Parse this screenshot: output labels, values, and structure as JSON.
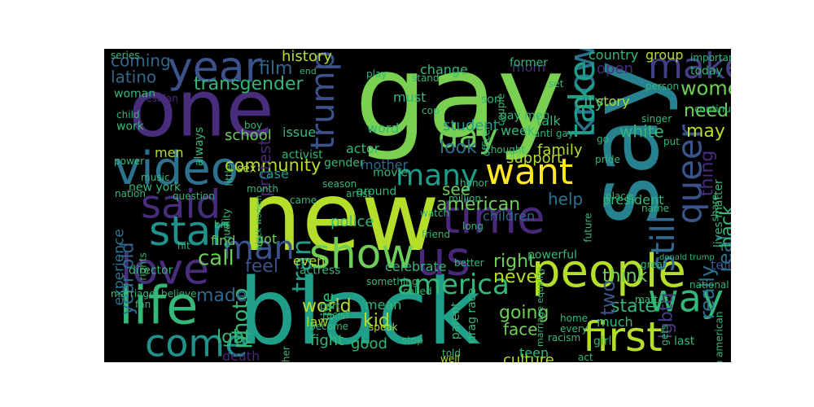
{
  "word_cloud": {
    "background": "#000000",
    "words": [
      {
        "text": "gay",
        "color": "#7ad151"
      },
      {
        "text": "new",
        "color": "#b5de2b"
      },
      {
        "text": "one",
        "color": "#472d7b"
      },
      {
        "text": "black",
        "color": "#1f9e89"
      },
      {
        "text": "say",
        "color": "#26828e"
      },
      {
        "text": "year",
        "color": "#3b528b"
      },
      {
        "text": "people",
        "color": "#b5de2b"
      },
      {
        "text": "time",
        "color": "#482878"
      },
      {
        "text": "want",
        "color": "#fde725"
      },
      {
        "text": "video",
        "color": "#2c728e"
      },
      {
        "text": "said",
        "color": "#472d7b"
      },
      {
        "text": "love",
        "color": "#472d7b"
      },
      {
        "text": "life",
        "color": "#35b779"
      },
      {
        "text": "come",
        "color": "#21918c"
      },
      {
        "text": "star",
        "color": "#21918c"
      },
      {
        "text": "man",
        "color": "#3b528b"
      },
      {
        "text": "show",
        "color": "#6ece58"
      },
      {
        "text": "us",
        "color": "#482878"
      },
      {
        "text": "america",
        "color": "#35b779"
      },
      {
        "text": "first",
        "color": "#b5de2b"
      },
      {
        "text": "way",
        "color": "#35b779"
      },
      {
        "text": "make",
        "color": "#433e85"
      },
      {
        "text": "trump",
        "color": "#3b528b"
      },
      {
        "text": "day",
        "color": "#6ece58"
      },
      {
        "text": "many",
        "color": "#1f9e89"
      },
      {
        "text": "know",
        "color": "#2c728e"
      },
      {
        "text": "take",
        "color": "#1f9e89"
      },
      {
        "text": "queer",
        "color": "#3b528b"
      },
      {
        "text": "still",
        "color": "#31688e"
      },
      {
        "text": "women",
        "color": "#6ece58"
      },
      {
        "text": "need",
        "color": "#6ece58"
      },
      {
        "text": "may",
        "color": "#b5de2b"
      },
      {
        "text": "film",
        "color": "#31688e"
      },
      {
        "text": "coming",
        "color": "#31688e"
      },
      {
        "text": "latino",
        "color": "#31688e"
      },
      {
        "text": "transgender",
        "color": "#35b779"
      },
      {
        "text": "history",
        "color": "#b5de2b"
      },
      {
        "text": "change",
        "color": "#35b779"
      },
      {
        "text": "community",
        "color": "#b5de2b"
      },
      {
        "text": "support",
        "color": "#b5de2b"
      },
      {
        "text": "family",
        "color": "#b5de2b"
      },
      {
        "text": "student",
        "color": "#1f9e89"
      },
      {
        "text": "white",
        "color": "#35b779"
      },
      {
        "text": "look",
        "color": "#2c728e"
      },
      {
        "text": "see",
        "color": "#6ece58"
      },
      {
        "text": "american",
        "color": "#6ece58"
      },
      {
        "text": "help",
        "color": "#2c728e"
      },
      {
        "text": "school",
        "color": "#6ece58"
      },
      {
        "text": "feel",
        "color": "#3b528b"
      },
      {
        "text": "call",
        "color": "#6ece58"
      },
      {
        "text": "tran",
        "color": "#1f9e89"
      },
      {
        "text": "right",
        "color": "#6ece58"
      },
      {
        "text": "never",
        "color": "#b5de2b"
      },
      {
        "text": "world",
        "color": "#b5de2b"
      },
      {
        "text": "photo",
        "color": "#35b779"
      },
      {
        "text": "made",
        "color": "#31688e"
      },
      {
        "text": "think",
        "color": "#6ece58"
      },
      {
        "text": "state",
        "color": "#35b779"
      },
      {
        "text": "two",
        "color": "#3b528b"
      },
      {
        "text": "lgbtq",
        "color": "#433e85"
      },
      {
        "text": "real",
        "color": "#2c728e"
      },
      {
        "text": "really",
        "color": "#2c728e"
      },
      {
        "text": "thing",
        "color": "#472d7b"
      },
      {
        "text": "back",
        "color": "#35b779"
      },
      {
        "text": "lgbt",
        "color": "#35b779"
      },
      {
        "text": "kid",
        "color": "#b5de2b"
      },
      {
        "text": "going",
        "color": "#6ece58"
      },
      {
        "text": "face",
        "color": "#6ece58"
      },
      {
        "text": "fight",
        "color": "#35b779"
      },
      {
        "text": "good",
        "color": "#35b779"
      },
      {
        "text": "live",
        "color": "#35b779"
      },
      {
        "text": "law",
        "color": "#b5de2b"
      },
      {
        "text": "year old",
        "color": "#31688e"
      },
      {
        "text": "experience",
        "color": "#2c728e"
      },
      {
        "text": "protest",
        "color": "#482878"
      },
      {
        "text": "police",
        "color": "#35b779"
      },
      {
        "text": "president",
        "color": "#35b779"
      },
      {
        "text": "celebrate",
        "color": "#35b779"
      },
      {
        "text": "children",
        "color": "#31688e"
      },
      {
        "text": "new york",
        "color": "#35b779"
      },
      {
        "text": "sex",
        "color": "#b5de2b"
      },
      {
        "text": "case",
        "color": "#1f9e89"
      },
      {
        "text": "got",
        "color": "#6ece58"
      },
      {
        "text": "find",
        "color": "#6ece58"
      },
      {
        "text": "tell",
        "color": "#3b528b"
      },
      {
        "text": "country",
        "color": "#35b779"
      },
      {
        "text": "group",
        "color": "#b5de2b"
      },
      {
        "text": "open",
        "color": "#472d7b"
      },
      {
        "text": "today",
        "color": "#35b779"
      },
      {
        "text": "story",
        "color": "#b5de2b"
      },
      {
        "text": "city",
        "color": "#35b779"
      },
      {
        "text": "mom",
        "color": "#472d7b"
      },
      {
        "text": "must",
        "color": "#35b779"
      },
      {
        "text": "word",
        "color": "#35b779"
      },
      {
        "text": "issue",
        "color": "#35b779"
      },
      {
        "text": "week",
        "color": "#35b779"
      },
      {
        "text": "talk",
        "color": "#35b779"
      },
      {
        "text": "actor",
        "color": "#35b779"
      },
      {
        "text": "mother",
        "color": "#31688e"
      },
      {
        "text": "black women",
        "color": "#35b779"
      },
      {
        "text": "death",
        "color": "#482878"
      },
      {
        "text": "hope",
        "color": "#b5de2b"
      },
      {
        "text": "much",
        "color": "#35b779"
      },
      {
        "text": "teen",
        "color": "#35b779"
      },
      {
        "text": "culture",
        "color": "#b5de2b"
      },
      {
        "text": "parent",
        "color": "#35b779"
      },
      {
        "text": "mean",
        "color": "#35b779"
      },
      {
        "text": "men",
        "color": "#b5de2b"
      },
      {
        "text": "nation",
        "color": "#35b779"
      },
      {
        "text": "question",
        "color": "#35b779"
      },
      {
        "text": "activist",
        "color": "#35b779"
      },
      {
        "text": "gender",
        "color": "#35b779"
      },
      {
        "text": "movie",
        "color": "#35b779"
      },
      {
        "text": "season",
        "color": "#35b779"
      },
      {
        "text": "artist",
        "color": "#35b779"
      },
      {
        "text": "came",
        "color": "#35b779"
      },
      {
        "text": "work",
        "color": "#35b779"
      },
      {
        "text": "music",
        "color": "#35b779"
      },
      {
        "text": "power",
        "color": "#35b779"
      },
      {
        "text": "child",
        "color": "#35b779"
      },
      {
        "text": "woman",
        "color": "#35b779"
      },
      {
        "text": "lesbian",
        "color": "#472d7b"
      },
      {
        "text": "end",
        "color": "#35b779"
      },
      {
        "text": "play",
        "color": "#35b779"
      },
      {
        "text": "around",
        "color": "#35b779"
      },
      {
        "text": "son",
        "color": "#35b779"
      },
      {
        "text": "former",
        "color": "#35b779"
      },
      {
        "text": "set",
        "color": "#35b779"
      },
      {
        "text": "person",
        "color": "#35b779"
      },
      {
        "text": "important",
        "color": "#35b779"
      },
      {
        "text": "singer",
        "color": "#35b779"
      },
      {
        "text": "continue",
        "color": "#35b779"
      },
      {
        "text": "lives matter",
        "color": "#35b779"
      },
      {
        "text": "share",
        "color": "#35b779"
      },
      {
        "text": "pride",
        "color": "#35b779"
      },
      {
        "text": "anti gay",
        "color": "#35b779"
      },
      {
        "text": "gay men",
        "color": "#35b779"
      },
      {
        "text": "put",
        "color": "#35b779"
      },
      {
        "text": "place",
        "color": "#35b779"
      },
      {
        "text": "name",
        "color": "#35b779"
      },
      {
        "text": "marriage equality",
        "color": "#35b779"
      },
      {
        "text": "donald trump",
        "color": "#35b779"
      },
      {
        "text": "great",
        "color": "#35b779"
      },
      {
        "text": "national",
        "color": "#35b779"
      },
      {
        "text": "african american",
        "color": "#35b779"
      },
      {
        "text": "last",
        "color": "#35b779"
      },
      {
        "text": "girl",
        "color": "#35b779"
      },
      {
        "text": "act",
        "color": "#35b779"
      },
      {
        "text": "racism",
        "color": "#35b779"
      },
      {
        "text": "every",
        "color": "#35b779"
      },
      {
        "text": "home",
        "color": "#35b779"
      },
      {
        "text": "matter",
        "color": "#35b779"
      },
      {
        "text": "drag race",
        "color": "#35b779"
      },
      {
        "text": "powerful",
        "color": "#35b779"
      },
      {
        "text": "long",
        "color": "#35b779"
      },
      {
        "text": "better",
        "color": "#35b779"
      },
      {
        "text": "friend",
        "color": "#35b779"
      },
      {
        "text": "watch",
        "color": "#35b779"
      },
      {
        "text": "million",
        "color": "#35b779"
      },
      {
        "text": "honor",
        "color": "#35b779"
      },
      {
        "text": "even",
        "color": "#b5de2b"
      },
      {
        "text": "actress",
        "color": "#35b779"
      },
      {
        "text": "director",
        "color": "#35b779"
      },
      {
        "text": "hit",
        "color": "#35b779"
      },
      {
        "text": "big",
        "color": "#35b779"
      },
      {
        "text": "month",
        "color": "#35b779"
      },
      {
        "text": "equality",
        "color": "#35b779"
      },
      {
        "text": "believe",
        "color": "#35b779"
      },
      {
        "text": "marriage",
        "color": "#35b779"
      },
      {
        "text": "fan",
        "color": "#35b779"
      },
      {
        "text": "rights",
        "color": "#35b779"
      },
      {
        "text": "racist",
        "color": "#35b779"
      },
      {
        "text": "become",
        "color": "#35b779"
      },
      {
        "text": "another",
        "color": "#35b779"
      },
      {
        "text": "something",
        "color": "#35b779"
      },
      {
        "text": "called",
        "color": "#35b779"
      },
      {
        "text": "speak",
        "color": "#b5de2b"
      },
      {
        "text": "told",
        "color": "#35b779"
      },
      {
        "text": "well",
        "color": "#b5de2b"
      },
      {
        "text": "stop",
        "color": "#35b779"
      },
      {
        "text": "part",
        "color": "#35b779"
      },
      {
        "text": "always",
        "color": "#35b779"
      },
      {
        "text": "little",
        "color": "#35b779"
      },
      {
        "text": "boy",
        "color": "#35b779"
      },
      {
        "text": "officer",
        "color": "#35b779"
      },
      {
        "text": "couple",
        "color": "#35b779"
      },
      {
        "text": "stand",
        "color": "#35b779"
      },
      {
        "text": "cop",
        "color": "#35b779"
      },
      {
        "text": "thought",
        "color": "#35b779"
      },
      {
        "text": "go",
        "color": "#35b779"
      },
      {
        "text": "future",
        "color": "#35b779"
      },
      {
        "text": "gets",
        "color": "#35b779"
      },
      {
        "text": "series",
        "color": "#35b779"
      }
    ]
  }
}
